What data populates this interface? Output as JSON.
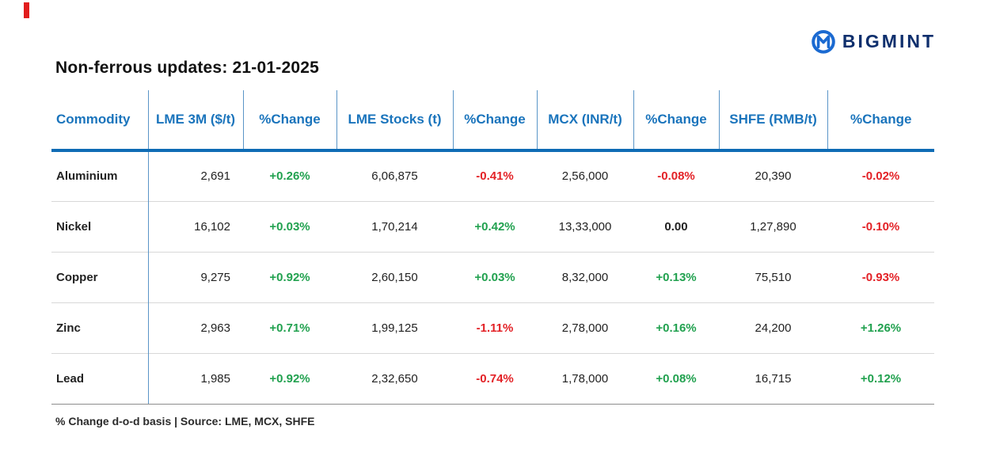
{
  "brand": {
    "name": "BIGMINT"
  },
  "title": "Non-ferrous updates: 21-01-2025",
  "footer_note": "% Change d-o-d basis | Source: LME, MCX, SHFE",
  "colors": {
    "header_blue": "#1a74bc",
    "rule_blue": "#0f6cb5",
    "positive_green": "#21a14f",
    "negative_red": "#e32126",
    "brand_navy": "#0e2f6d",
    "logo_icon_blue": "#1b6ad1",
    "red_accent": "#e11d1d"
  },
  "chart_data": {
    "type": "table",
    "title": "Non-ferrous updates: 21-01-2025",
    "columns": [
      "Commodity",
      "LME 3M ($/t)",
      "%Change",
      "LME Stocks (t)",
      "%Change",
      "MCX (INR/t)",
      "%Change",
      "SHFE (RMB/t)",
      "%Change"
    ],
    "change_column_indices": [
      2,
      4,
      6,
      8
    ],
    "rows": [
      [
        "Aluminium",
        "2,691",
        "+0.26%",
        "6,06,875",
        "-0.41%",
        "2,56,000",
        "-0.08%",
        "20,390",
        "-0.02%"
      ],
      [
        "Nickel",
        "16,102",
        "+0.03%",
        "1,70,214",
        "+0.42%",
        "13,33,000",
        "0.00",
        "1,27,890",
        "-0.10%"
      ],
      [
        "Copper",
        "9,275",
        "+0.92%",
        "2,60,150",
        "+0.03%",
        "8,32,000",
        "+0.13%",
        "75,510",
        "-0.93%"
      ],
      [
        "Zinc",
        "2,963",
        "+0.71%",
        "1,99,125",
        "-1.11%",
        "2,78,000",
        "+0.16%",
        "24,200",
        "+1.26%"
      ],
      [
        "Lead",
        "1,985",
        "+0.92%",
        "2,32,650",
        "-0.74%",
        "1,78,000",
        "+0.08%",
        "16,715",
        "+0.12%"
      ]
    ],
    "note": "% Change d-o-d basis | Source: LME, MCX, SHFE"
  }
}
